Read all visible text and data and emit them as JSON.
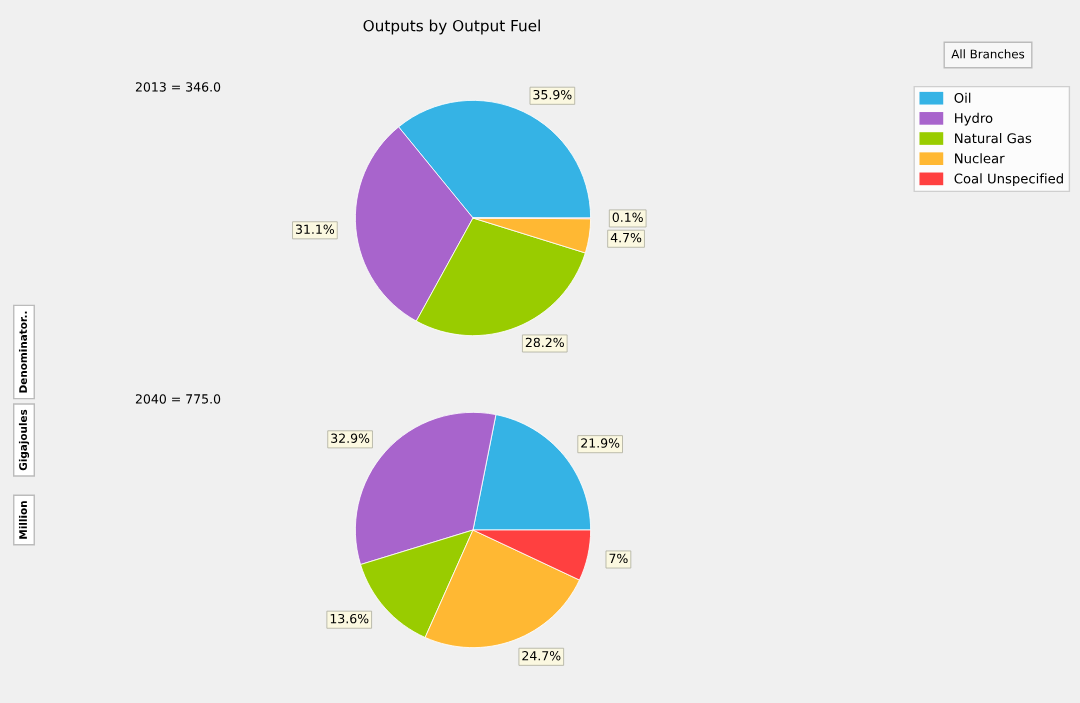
{
  "chart_data": [
    {
      "type": "pie",
      "title": "Outputs by Output Fuel",
      "subtitle": "2013 = 346.0",
      "legend": "top right",
      "categories": [
        "Oil",
        "Hydro",
        "Natural Gas",
        "Nuclear",
        "Coal Unspecified"
      ],
      "values": [
        35.9,
        31.1,
        28.2,
        4.7,
        0.1
      ],
      "value_labels": [
        "35.9%",
        "31.1%",
        "28.2%",
        "4.7%",
        "0.1%"
      ],
      "colors": [
        "#35b3e5",
        "#a864cc",
        "#99cc00",
        "#ffb833",
        "#ff4040"
      ],
      "annotations": [
        "All Branches",
        "Denominator..",
        "Gigajoules",
        "Million"
      ]
    },
    {
      "type": "pie",
      "subtitle": "2040 = 775.0",
      "categories": [
        null,
        null,
        null,
        null,
        null
      ],
      "values": [
        21.9,
        32.9,
        13.6,
        24.7,
        7
      ],
      "value_labels": [
        "21.9%",
        "32.9%",
        "13.6%",
        "24.7%",
        "7%"
      ],
      "colors": [
        "#35b3e5",
        "#a864cc",
        "#99cc00",
        "#ffb833",
        "#ff4040"
      ]
    }
  ]
}
